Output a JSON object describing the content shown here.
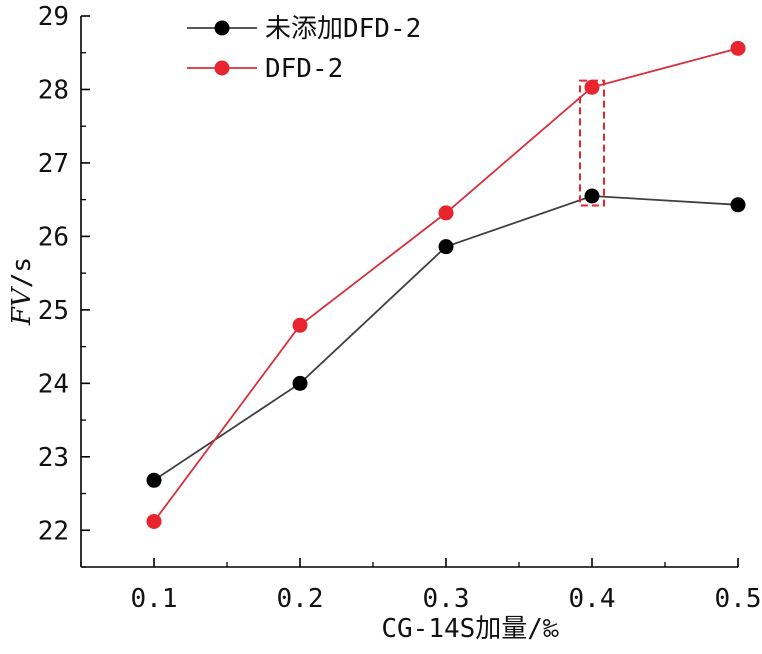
{
  "chart_data": {
    "type": "line",
    "x": [
      0.1,
      0.2,
      0.3,
      0.4,
      0.5
    ],
    "x_tick_labels": [
      "0.1",
      "0.2",
      "0.3",
      "0.4",
      "0.5"
    ],
    "xlim": [
      0.05,
      0.5
    ],
    "ylim": [
      21.5,
      29
    ],
    "y_ticks": [
      22,
      23,
      24,
      25,
      26,
      27,
      28,
      29
    ],
    "y_tick_labels": [
      "22",
      "23",
      "24",
      "25",
      "26",
      "27",
      "28",
      "29"
    ],
    "xlabel": "CG-14S加量/‰",
    "ylabel_italic": "FV",
    "ylabel_unit": "/s",
    "grid": false,
    "legend_position": "top-left",
    "series": [
      {
        "name": "未添加DFD-2",
        "color": "#404040",
        "marker_color": "#000000",
        "values": [
          22.68,
          24.0,
          25.86,
          26.55,
          26.43
        ]
      },
      {
        "name": "DFD-2",
        "color": "#d6303c",
        "marker_color": "#e8252f",
        "values": [
          22.12,
          24.79,
          26.32,
          28.03,
          28.56
        ]
      }
    ],
    "highlight": {
      "x": 0.4,
      "y_range": [
        26.42,
        28.12
      ],
      "color": "#e8252f"
    }
  }
}
